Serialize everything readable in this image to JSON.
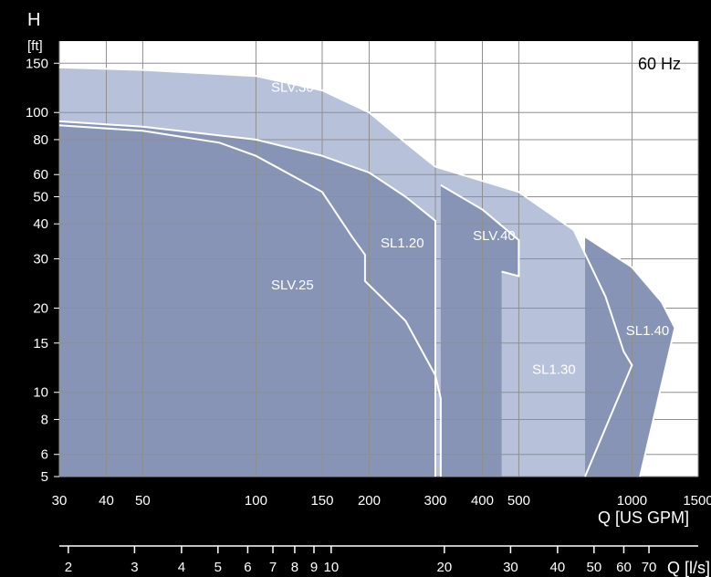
{
  "chart_data": {
    "type": "area",
    "title": "",
    "frequency_label": "60 Hz",
    "y_axis": {
      "label_top": "H",
      "label_unit": "[ft]",
      "scale": "log",
      "range": [
        5,
        180
      ],
      "ticks": [
        5,
        6,
        8,
        10,
        15,
        20,
        30,
        40,
        50,
        60,
        80,
        100,
        150
      ]
    },
    "x_axis": {
      "label": "Q [US GPM]",
      "scale": "log",
      "range": [
        30,
        1500
      ],
      "ticks": [
        30,
        40,
        50,
        100,
        150,
        200,
        300,
        400,
        500,
        1000,
        1500
      ]
    },
    "x2_axis": {
      "label": "Q [l/s]",
      "scale": "log",
      "tick_labels": [
        2,
        3,
        4,
        5,
        6,
        7,
        8,
        9,
        10,
        20,
        30,
        40,
        50,
        60,
        70
      ]
    },
    "grid": true,
    "colors": {
      "background": "#000000",
      "plot_background": "#ffffff",
      "light_region": "#b8c1da",
      "dark_region": "#8894b6",
      "grid": "#8f8f8f",
      "axis_text": "#ffffff"
    },
    "series": [
      {
        "name": "SLV.30",
        "label_x": 125,
        "label_y": 122,
        "shade": "light",
        "points": [
          [
            30,
            145
          ],
          [
            50,
            142
          ],
          [
            100,
            135
          ],
          [
            150,
            120
          ],
          [
            200,
            100
          ],
          [
            250,
            78
          ],
          [
            300,
            64
          ]
        ]
      },
      {
        "name": "SLV.25",
        "label_x": 125,
        "label_y": 24,
        "shade": "light",
        "points": [
          [
            30,
            90
          ],
          [
            50,
            86
          ],
          [
            80,
            78
          ],
          [
            100,
            70
          ],
          [
            150,
            52
          ],
          [
            180,
            36
          ],
          [
            195,
            31
          ],
          [
            195,
            25
          ],
          [
            250,
            18
          ],
          [
            300,
            11.5
          ],
          [
            310,
            9.5
          ],
          [
            310,
            5
          ]
        ]
      },
      {
        "name": "SL1.20",
        "label_x": 245,
        "label_y": 34,
        "shade": "dark",
        "points": [
          [
            30,
            93
          ],
          [
            50,
            89
          ],
          [
            100,
            80
          ],
          [
            150,
            70
          ],
          [
            200,
            61
          ],
          [
            250,
            50
          ],
          [
            300,
            41
          ],
          [
            300,
            5
          ]
        ]
      },
      {
        "name": "SLV.40",
        "label_x": 430,
        "label_y": 36,
        "shade": "dark",
        "points": [
          [
            310,
            55
          ],
          [
            400,
            45
          ],
          [
            500,
            35
          ],
          [
            500,
            26
          ],
          [
            450,
            27
          ]
        ]
      },
      {
        "name": "SL1.30",
        "label_x": 620,
        "label_y": 12,
        "shade": "light",
        "points": [
          [
            300,
            64
          ],
          [
            500,
            52
          ],
          [
            700,
            38
          ],
          [
            850,
            22
          ],
          [
            950,
            14
          ],
          [
            1000,
            12.5
          ],
          [
            750,
            5
          ]
        ]
      },
      {
        "name": "SL1.40",
        "label_x": 1100,
        "label_y": 16.5,
        "shade": "dark",
        "points": [
          [
            750,
            36
          ],
          [
            1000,
            28
          ],
          [
            1200,
            21
          ],
          [
            1300,
            17
          ],
          [
            1050,
            5
          ]
        ]
      }
    ]
  }
}
